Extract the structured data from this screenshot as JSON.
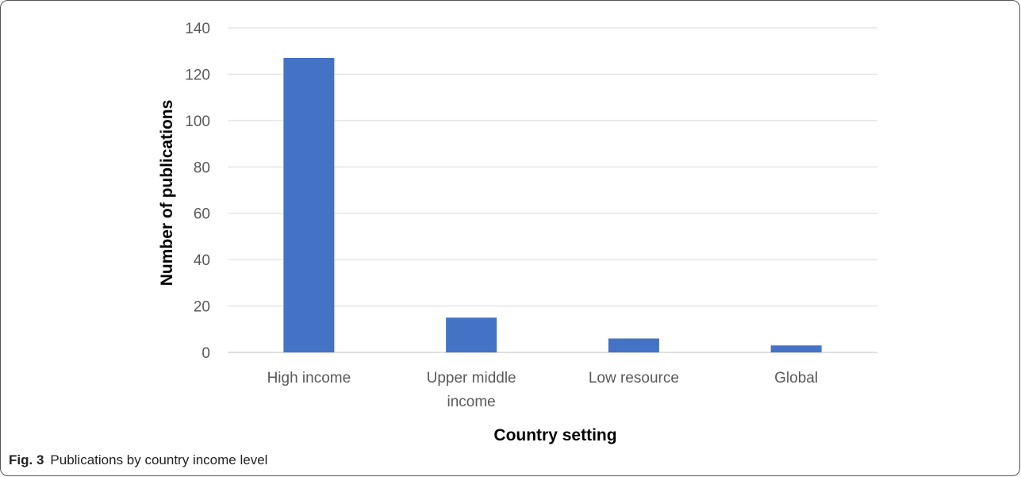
{
  "chart_data": {
    "type": "bar",
    "categories": [
      "High income",
      "Upper middle income",
      "Low resource",
      "Global"
    ],
    "values": [
      127,
      15,
      6,
      3
    ],
    "xlabel": "Country setting",
    "ylabel": "Number of publications",
    "ylim": [
      0,
      140
    ],
    "yticks": [
      0,
      20,
      40,
      60,
      80,
      100,
      120,
      140
    ],
    "grid": true,
    "bar_color": "#4472c4"
  },
  "caption": {
    "label": "Fig. 3",
    "text": "Publications by country income level"
  }
}
